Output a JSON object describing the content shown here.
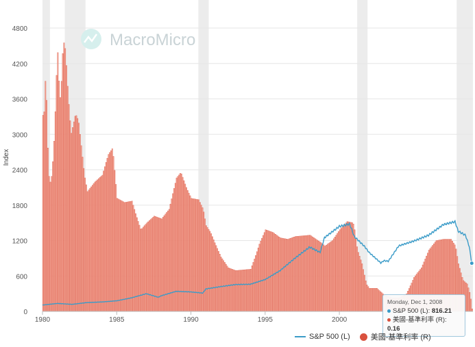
{
  "watermark": "MacroMicro",
  "chart_data": {
    "type": "bar+line",
    "ylabel": "Index",
    "left_axis": {
      "ticks": [
        0,
        600,
        1200,
        1800,
        2400,
        3000,
        3600,
        4200,
        4800
      ],
      "ylim": [
        0,
        5000
      ]
    },
    "right_axis_scale_note": "bars on right axis scaled so that 1 unit = 230.77 left-axis units",
    "x_ticks": [
      1980,
      1985,
      1990,
      1995,
      2000
    ],
    "xlim": [
      1980.0,
      2009.0
    ],
    "recessions": [
      [
        1980.0,
        1980.5
      ],
      [
        1981.5,
        1982.9
      ],
      [
        1990.5,
        1991.2
      ],
      [
        2001.2,
        2001.9
      ],
      [
        2007.9,
        2009.0
      ]
    ],
    "series": [
      {
        "name": "S&P 500 (L)",
        "axis": "left",
        "color": "#3a9bc8",
        "x": [
          1980,
          1981,
          1982,
          1983,
          1984,
          1985,
          1986,
          1987,
          1987.8,
          1988,
          1989,
          1990,
          1990.8,
          1991,
          1992,
          1993,
          1994,
          1995,
          1996,
          1997,
          1998,
          1998.7,
          1999,
          2000,
          2000.7,
          2001,
          2001.7,
          2002,
          2002.8,
          2003,
          2003.3,
          2004,
          2005,
          2006,
          2007,
          2007.8,
          2008,
          2008.5,
          2008.75,
          2008.92
        ],
        "values": [
          108,
          135,
          120,
          150,
          160,
          180,
          230,
          300,
          240,
          265,
          340,
          330,
          310,
          380,
          420,
          455,
          460,
          540,
          690,
          900,
          1090,
          1000,
          1250,
          1440,
          1480,
          1270,
          1100,
          1000,
          820,
          860,
          850,
          1110,
          1190,
          1290,
          1470,
          1520,
          1360,
          1290,
          1100,
          816
        ]
      },
      {
        "name": "美國-基準利率 (R)",
        "axis": "right",
        "color": "#d9513e",
        "x": [
          1980.0,
          1980.1,
          1980.2,
          1980.3,
          1980.4,
          1980.5,
          1980.6,
          1980.7,
          1980.8,
          1980.9,
          1981.0,
          1981.1,
          1981.2,
          1981.3,
          1981.4,
          1981.5,
          1981.6,
          1981.7,
          1981.8,
          1981.9,
          1982.0,
          1982.2,
          1982.4,
          1982.6,
          1982.8,
          1983.0,
          1983.5,
          1984.0,
          1984.4,
          1984.7,
          1985.0,
          1985.5,
          1986.0,
          1986.3,
          1986.6,
          1987.0,
          1987.5,
          1988.0,
          1988.5,
          1989.0,
          1989.3,
          1989.7,
          1990.0,
          1990.5,
          1990.8,
          1991.0,
          1991.3,
          1991.6,
          1992.0,
          1992.5,
          1993.0,
          1994.0,
          1994.3,
          1994.6,
          1995.0,
          1995.5,
          1996.0,
          1996.5,
          1997.0,
          1998.0,
          1998.8,
          1999.0,
          1999.5,
          2000.0,
          2000.5,
          2000.9,
          2001.0,
          2001.2,
          2001.5,
          2001.8,
          2002.0,
          2002.5,
          2003.0,
          2003.5,
          2004.0,
          2004.5,
          2004.8,
          2005.0,
          2005.5,
          2006.0,
          2006.5,
          2007.0,
          2007.5,
          2007.8,
          2008.0,
          2008.3,
          2008.6,
          2008.8,
          2008.92
        ],
        "values": [
          14.4,
          14.7,
          18.0,
          13.0,
          10.0,
          9.5,
          10.0,
          11.5,
          13.5,
          17.0,
          19.0,
          16.5,
          15.3,
          18.5,
          19.8,
          19.3,
          17.8,
          15.9,
          14.5,
          13.0,
          13.5,
          14.5,
          14.0,
          12.0,
          10.0,
          8.8,
          9.5,
          10.0,
          11.5,
          12.0,
          8.3,
          8.0,
          8.1,
          7.0,
          6.0,
          6.5,
          7.0,
          6.8,
          7.5,
          9.8,
          10.2,
          9.0,
          8.3,
          8.2,
          7.5,
          6.3,
          5.8,
          5.0,
          4.0,
          3.2,
          3.0,
          3.1,
          4.0,
          5.0,
          6.0,
          5.8,
          5.4,
          5.3,
          5.5,
          5.6,
          5.0,
          4.8,
          5.2,
          6.0,
          6.6,
          6.5,
          6.0,
          4.5,
          3.5,
          2.0,
          1.7,
          1.7,
          1.2,
          1.0,
          1.0,
          1.3,
          2.0,
          2.5,
          3.2,
          4.5,
          5.2,
          5.3,
          5.3,
          4.8,
          3.5,
          2.3,
          2.0,
          1.2,
          0.16
        ]
      }
    ]
  },
  "tooltip": {
    "date": "Monday, Dec 1, 2008",
    "sp500_label": "S&P 500 (L): ",
    "sp500_value": "816.21",
    "rate_label": "美國-基準利率 (R): ",
    "rate_value": "0.16",
    "sp500_color": "#3a9bc8",
    "rate_color": "#d9513e"
  },
  "legend": {
    "sp500": "S&P 500 (L)",
    "rate": "美國-基準利率 (R)"
  }
}
